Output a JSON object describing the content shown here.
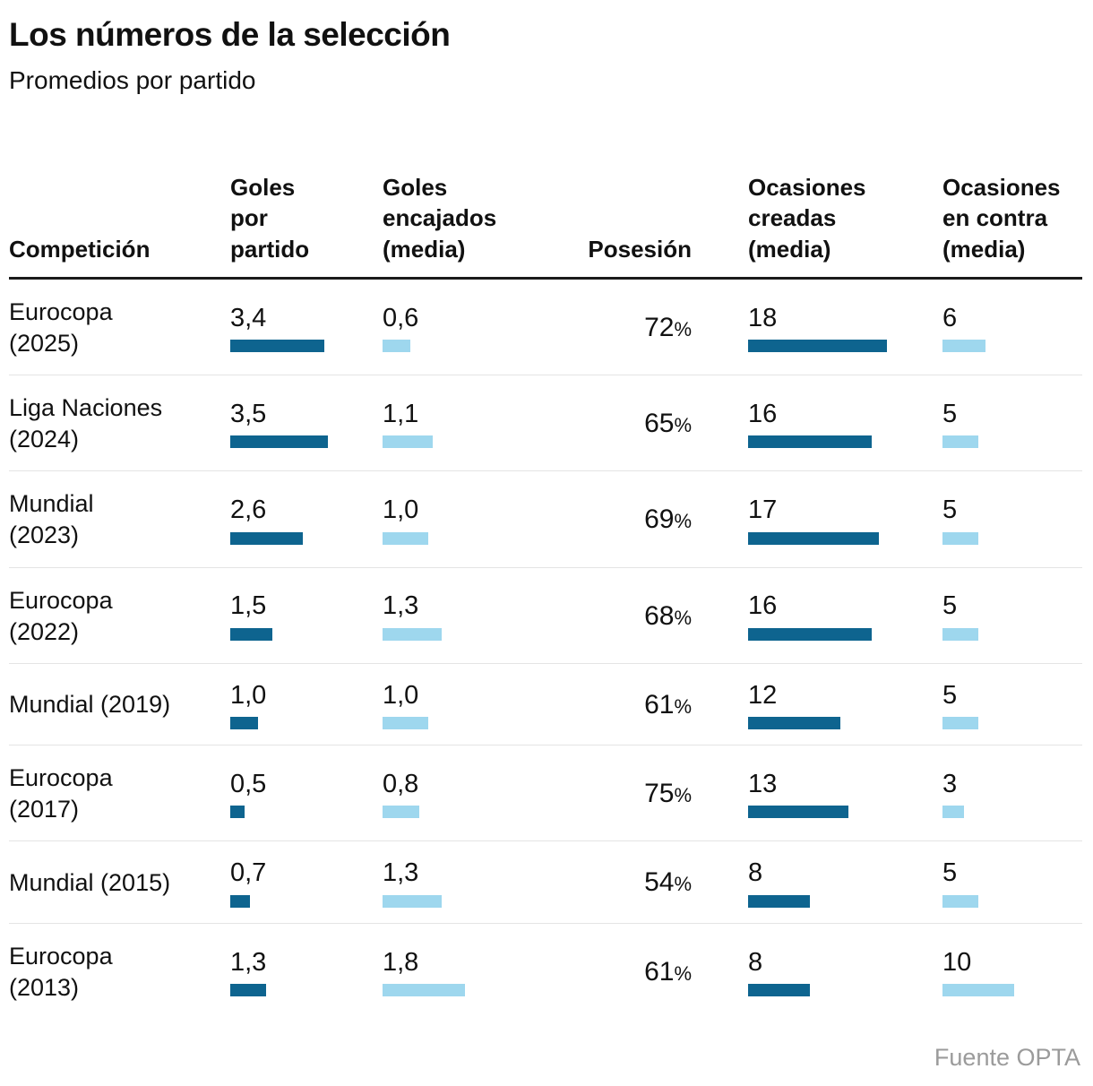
{
  "title": "Los números de la selección",
  "subtitle": "Promedios por partido",
  "source": "Fuente OPTA",
  "colors": {
    "dark_bar": "#0e648f",
    "light_bar": "#9ed7ee",
    "header_rule": "#1a1a1a",
    "row_divider": "#e4e4e4",
    "source_text": "#9b9b9b"
  },
  "columns": {
    "competition": "Competición",
    "goals_for": "Goles\npor\npartido",
    "goals_against": "Goles\nencajados\n(media)",
    "possession": "Posesión",
    "chances_created": "Ocasiones\ncreadas\n(media)",
    "chances_against": "Ocasiones\nen contra\n(media)"
  },
  "bar_scales": {
    "goals_for": 31,
    "goals_against": 51,
    "chances_created": 8.6,
    "chances_against": 8
  },
  "chart_data": {
    "type": "table",
    "title": "Los números de la selección",
    "subtitle": "Promedios por partido",
    "source": "Fuente OPTA",
    "columns": [
      "Competición",
      "Goles por partido",
      "Goles encajados (media)",
      "Posesión",
      "Ocasiones creadas (media)",
      "Ocasiones en contra (media)"
    ],
    "rows": [
      {
        "competition": "Eurocopa\n(2025)",
        "goals_for": "3,4",
        "goals_for_value": 3.4,
        "goals_against": "0,6",
        "goals_against_value": 0.6,
        "possession": "72%",
        "possession_value": 72,
        "chances_created": "18",
        "chances_created_value": 18,
        "chances_against": "6",
        "chances_against_value": 6
      },
      {
        "competition": "Liga Naciones\n(2024)",
        "goals_for": "3,5",
        "goals_for_value": 3.5,
        "goals_against": "1,1",
        "goals_against_value": 1.1,
        "possession": "65%",
        "possession_value": 65,
        "chances_created": "16",
        "chances_created_value": 16,
        "chances_against": "5",
        "chances_against_value": 5
      },
      {
        "competition": "Mundial\n(2023)",
        "goals_for": "2,6",
        "goals_for_value": 2.6,
        "goals_against": "1,0",
        "goals_against_value": 1.0,
        "possession": "69%",
        "possession_value": 69,
        "chances_created": "17",
        "chances_created_value": 17,
        "chances_against": "5",
        "chances_against_value": 5
      },
      {
        "competition": "Eurocopa\n(2022)",
        "goals_for": "1,5",
        "goals_for_value": 1.5,
        "goals_against": "1,3",
        "goals_against_value": 1.3,
        "possession": "68%",
        "possession_value": 68,
        "chances_created": "16",
        "chances_created_value": 16,
        "chances_against": "5",
        "chances_against_value": 5
      },
      {
        "competition": "Mundial (2019)",
        "goals_for": "1,0",
        "goals_for_value": 1.0,
        "goals_against": "1,0",
        "goals_against_value": 1.0,
        "possession": "61%",
        "possession_value": 61,
        "chances_created": "12",
        "chances_created_value": 12,
        "chances_against": "5",
        "chances_against_value": 5
      },
      {
        "competition": "Eurocopa\n(2017)",
        "goals_for": "0,5",
        "goals_for_value": 0.5,
        "goals_against": "0,8",
        "goals_against_value": 0.8,
        "possession": "75%",
        "possession_value": 75,
        "chances_created": "13",
        "chances_created_value": 13,
        "chances_against": "3",
        "chances_against_value": 3
      },
      {
        "competition": "Mundial (2015)",
        "goals_for": "0,7",
        "goals_for_value": 0.7,
        "goals_against": "1,3",
        "goals_against_value": 1.3,
        "possession": "54%",
        "possession_value": 54,
        "chances_created": "8",
        "chances_created_value": 8,
        "chances_against": "5",
        "chances_against_value": 5
      },
      {
        "competition": "Eurocopa\n(2013)",
        "goals_for": "1,3",
        "goals_for_value": 1.3,
        "goals_against": "1,8",
        "goals_against_value": 1.8,
        "possession": "61%",
        "possession_value": 61,
        "chances_created": "8",
        "chances_created_value": 8,
        "chances_against": "10",
        "chances_against_value": 10
      }
    ]
  }
}
